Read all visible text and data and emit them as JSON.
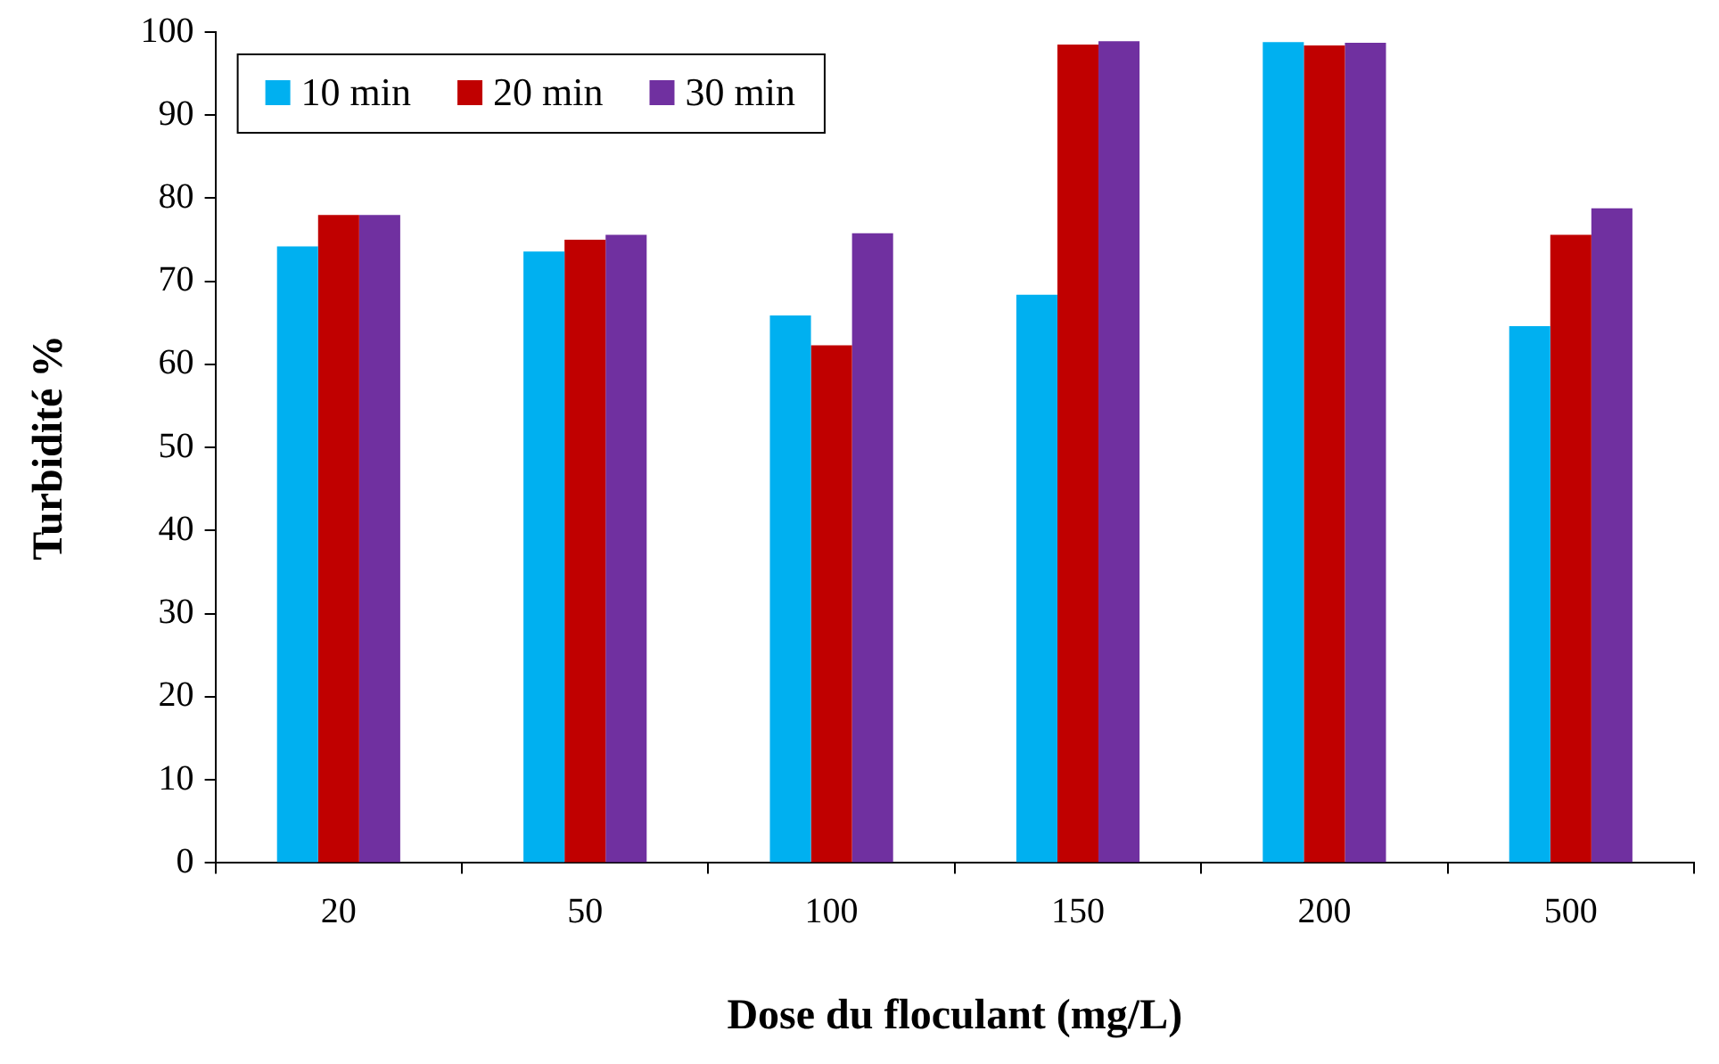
{
  "chart_data": {
    "type": "bar",
    "xlabel": "Dose du floculant (mg/L)",
    "ylabel": "Turbidité %",
    "categories": [
      "20",
      "50",
      "100",
      "150",
      "200",
      "500"
    ],
    "series": [
      {
        "name": "10 min",
        "color": "#00b0f0",
        "values": [
          74.2,
          73.6,
          65.9,
          68.4,
          98.8,
          64.6
        ]
      },
      {
        "name": "20 min",
        "color": "#c00000",
        "values": [
          78,
          75,
          62.3,
          98.5,
          98.4,
          75.6
        ]
      },
      {
        "name": "30 min",
        "color": "#7030a0",
        "values": [
          78,
          75.6,
          75.8,
          98.9,
          98.7,
          78.8
        ]
      }
    ],
    "ylim": [
      0,
      100
    ],
    "yticks": [
      0,
      10,
      20,
      30,
      40,
      50,
      60,
      70,
      80,
      90,
      100
    ],
    "grid": false,
    "legend": "top left"
  }
}
